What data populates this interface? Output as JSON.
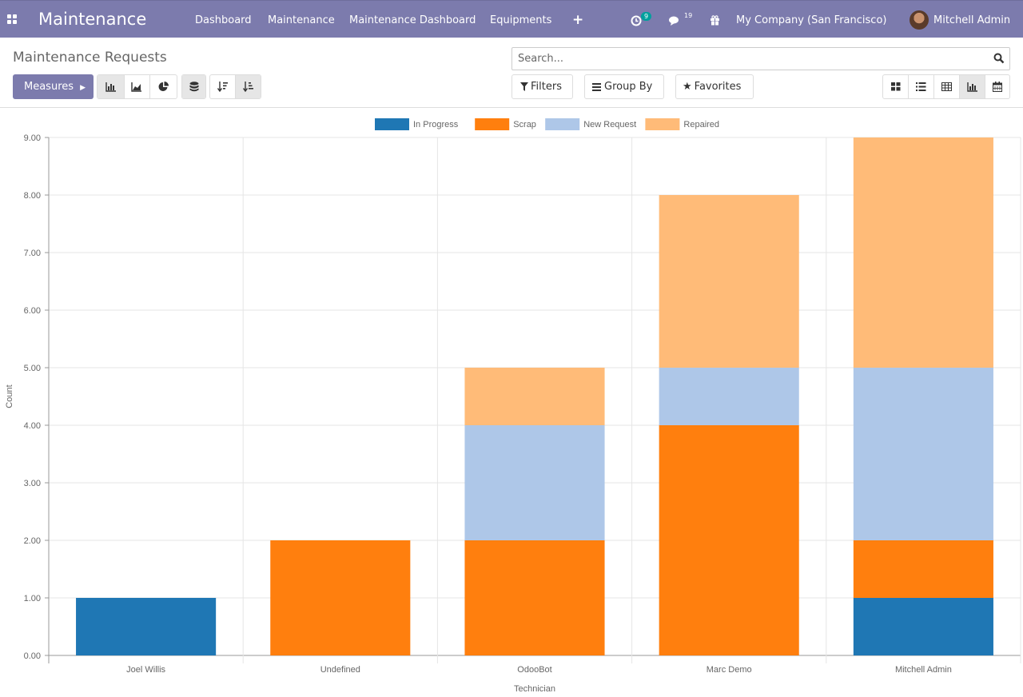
{
  "app": {
    "brand": "Maintenance",
    "menu": [
      "Dashboard",
      "Maintenance",
      "Maintenance Dashboard",
      "Equipments"
    ],
    "activity_count": "9",
    "message_count": "19",
    "company": "My Company (San Francisco)",
    "user": "Mitchell Admin"
  },
  "control_panel": {
    "title": "Maintenance Requests",
    "measures_label": "Measures",
    "search_placeholder": "Search...",
    "filters_label": "Filters",
    "groupby_label": "Group By",
    "favorites_label": "Favorites",
    "chart_modes": [
      "bar-chart-icon",
      "line-chart-icon",
      "pie-chart-icon"
    ],
    "view_switcher": [
      "kanban-icon",
      "list-icon",
      "pivot-icon",
      "graph-icon",
      "calendar-icon"
    ],
    "active_view": "graph-icon"
  },
  "chart_data": {
    "type": "bar",
    "stacked": true,
    "categories": [
      "Joel Willis",
      "Undefined",
      "OdooBot",
      "Marc Demo",
      "Mitchell Admin"
    ],
    "series": [
      {
        "name": "In Progress",
        "color": "#1f77b4",
        "values": [
          1,
          0,
          0,
          0,
          1
        ]
      },
      {
        "name": "Scrap",
        "color": "#ff7f0e",
        "values": [
          0,
          2,
          2,
          4,
          1
        ]
      },
      {
        "name": "New Request",
        "color": "#aec7e8",
        "values": [
          0,
          0,
          2,
          1,
          3
        ]
      },
      {
        "name": "Repaired",
        "color": "#ffbb78",
        "values": [
          0,
          0,
          1,
          3,
          4
        ]
      }
    ],
    "xlabel": "Technician",
    "ylabel": "Count",
    "ylim": [
      0,
      9
    ],
    "yticks": [
      "0.00",
      "1.00",
      "2.00",
      "3.00",
      "4.00",
      "5.00",
      "6.00",
      "7.00",
      "8.00",
      "9.00"
    ],
    "legend": "top",
    "grid": true
  }
}
